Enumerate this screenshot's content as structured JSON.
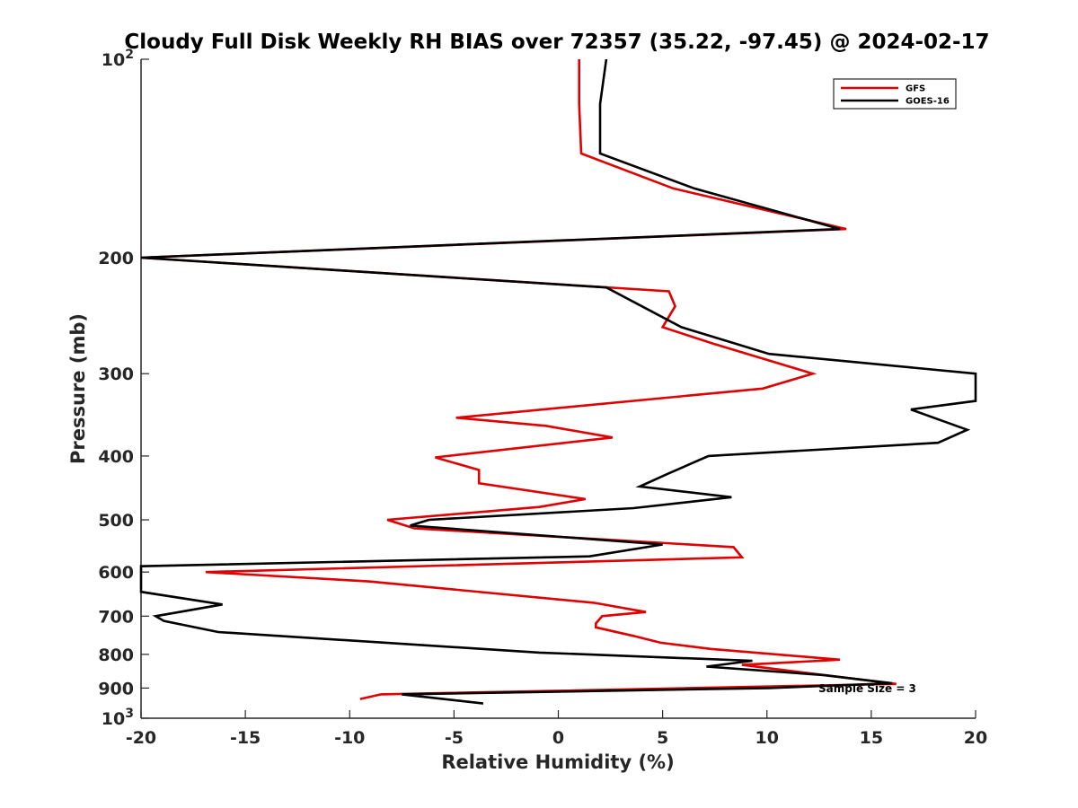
{
  "chart_data": {
    "type": "line",
    "title": "Cloudy Full Disk Weekly RH BIAS over 72357 (35.22, -97.45) @ 2024-02-17",
    "xlabel": "Relative Humidity (%)",
    "ylabel": "Pressure (mb)",
    "xlim": [
      -20,
      20
    ],
    "ylim": [
      100,
      1000
    ],
    "y_scale": "log",
    "y_reversed": true,
    "x_ticks": [
      -20,
      -15,
      -10,
      -5,
      0,
      5,
      10,
      15,
      20
    ],
    "x_tick_labels": [
      "-20",
      "-15",
      "-10",
      "-5",
      "0",
      "5",
      "10",
      "15",
      "20"
    ],
    "y_ticks": [
      100,
      200,
      300,
      400,
      500,
      600,
      700,
      800,
      900,
      1000
    ],
    "y_tick_labels": [
      {
        "base": "10",
        "exp": "2"
      },
      {
        "text": "200"
      },
      {
        "text": "300"
      },
      {
        "text": "400"
      },
      {
        "text": "500"
      },
      {
        "text": "600"
      },
      {
        "text": "700"
      },
      {
        "text": "800"
      },
      {
        "text": "900"
      },
      {
        "base": "10",
        "exp": "3"
      }
    ],
    "grid": false,
    "legend_position": "top-right",
    "annotation": "Sample Size = 3",
    "series": [
      {
        "name": "GFS",
        "color": "#e00000",
        "points": [
          [
            1.0,
            100
          ],
          [
            1.0,
            117
          ],
          [
            1.1,
            139
          ],
          [
            5.5,
            157
          ],
          [
            13.8,
            181
          ],
          [
            -20.0,
            200
          ],
          [
            5.3,
            225
          ],
          [
            5.6,
            237
          ],
          [
            5.0,
            255
          ],
          [
            7.4,
            270
          ],
          [
            12.2,
            300
          ],
          [
            9.8,
            316
          ],
          [
            -4.9,
            350
          ],
          [
            -0.6,
            360
          ],
          [
            2.6,
            375
          ],
          [
            -5.9,
            402
          ],
          [
            -3.8,
            420
          ],
          [
            -3.8,
            440
          ],
          [
            1.3,
            465
          ],
          [
            -0.9,
            478
          ],
          [
            -8.2,
            500
          ],
          [
            -6.9,
            515
          ],
          [
            8.4,
            550
          ],
          [
            8.8,
            570
          ],
          [
            -16.9,
            600
          ],
          [
            -9.1,
            620
          ],
          [
            1.7,
            668
          ],
          [
            4.2,
            690
          ],
          [
            2.1,
            700
          ],
          [
            1.8,
            718
          ],
          [
            1.8,
            728
          ],
          [
            3.6,
            750
          ],
          [
            4.9,
            768
          ],
          [
            7.3,
            785
          ],
          [
            13.5,
            815
          ],
          [
            8.8,
            830
          ],
          [
            16.2,
            887
          ],
          [
            -8.5,
            920
          ],
          [
            -9.5,
            935
          ]
        ]
      },
      {
        "name": "GOES-16",
        "color": "#000000",
        "points": [
          [
            2.3,
            100
          ],
          [
            2.0,
            117
          ],
          [
            2.0,
            139
          ],
          [
            6.5,
            157
          ],
          [
            13.5,
            181
          ],
          [
            -20.0,
            200
          ],
          [
            2.3,
            222
          ],
          [
            5.9,
            255
          ],
          [
            10.1,
            280
          ],
          [
            20.0,
            300
          ],
          [
            20.0,
            330
          ],
          [
            16.9,
            340
          ],
          [
            19.6,
            365
          ],
          [
            18.2,
            382
          ],
          [
            7.2,
            400
          ],
          [
            5.3,
            425
          ],
          [
            3.9,
            445
          ],
          [
            8.3,
            462
          ],
          [
            3.6,
            480
          ],
          [
            -6.2,
            500
          ],
          [
            -7.1,
            510
          ],
          [
            5.0,
            545
          ],
          [
            1.5,
            568
          ],
          [
            -20.0,
            588
          ],
          [
            -20.0,
            643
          ],
          [
            -16.1,
            672
          ],
          [
            -19.3,
            700
          ],
          [
            -18.9,
            712
          ],
          [
            -16.3,
            740
          ],
          [
            -0.9,
            795
          ],
          [
            9.3,
            818
          ],
          [
            7.1,
            835
          ],
          [
            12.7,
            860
          ],
          [
            16.0,
            885
          ],
          [
            10.1,
            900
          ],
          [
            -7.5,
            920
          ],
          [
            -3.6,
            950
          ]
        ]
      }
    ]
  }
}
